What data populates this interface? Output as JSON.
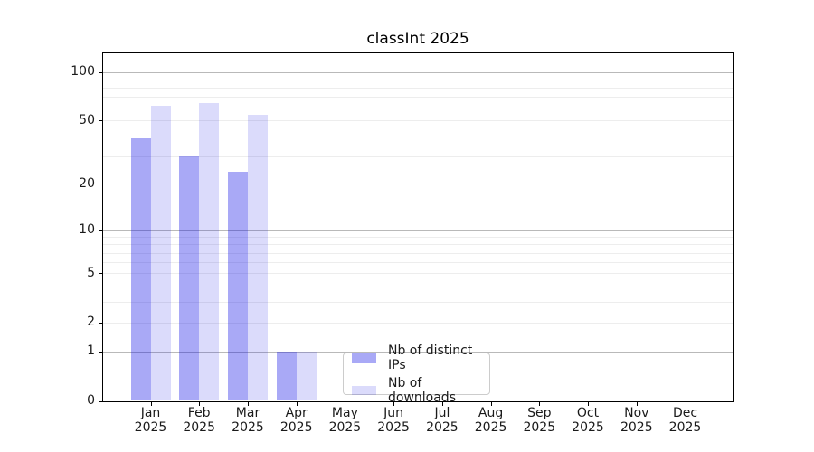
{
  "title": "classInt 2025",
  "legend": {
    "items": [
      {
        "label": "Nb of distinct IPs",
        "color": "rgba(10,10,228,0.35)"
      },
      {
        "label": "Nb of downloads",
        "color": "rgba(10,10,228,0.145)"
      }
    ]
  },
  "chart_data": {
    "type": "bar",
    "title": "classInt 2025",
    "categories": [
      "Jan",
      "Feb",
      "Mar",
      "Apr",
      "May",
      "Jun",
      "Jul",
      "Aug",
      "Sep",
      "Oct",
      "Nov",
      "Dec"
    ],
    "year_label": "2025",
    "series": [
      {
        "name": "Nb of distinct IPs",
        "color": "rgba(10,10,228,0.35)",
        "values": [
          39,
          30,
          24,
          1,
          null,
          null,
          null,
          null,
          null,
          null,
          null,
          null
        ]
      },
      {
        "name": "Nb of downloads",
        "color": "rgba(10,10,228,0.145)",
        "values": [
          62,
          64,
          54,
          1,
          null,
          null,
          null,
          null,
          null,
          null,
          null,
          null
        ]
      }
    ],
    "yscale": "log1p",
    "ylim": [
      0,
      130
    ],
    "ytick_values": [
      0,
      1,
      2,
      5,
      10,
      20,
      50,
      100
    ],
    "grid": true,
    "grid_major_values": [
      1,
      10,
      100
    ],
    "grid_minor_values": [
      2,
      3,
      4,
      5,
      6,
      7,
      8,
      9,
      20,
      30,
      40,
      50,
      60,
      70,
      80,
      90
    ],
    "legend_position": "inside bottom-center-left",
    "xlabel": "",
    "ylabel": ""
  }
}
